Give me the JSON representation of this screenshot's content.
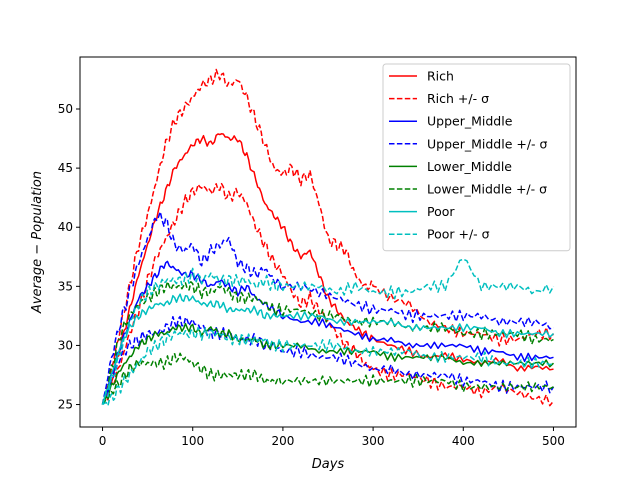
{
  "chart_data": {
    "type": "line",
    "title": "",
    "xlabel": "Days",
    "ylabel": "Average − Population",
    "xlim": [
      -25,
      525
    ],
    "ylim": [
      23.1,
      54.4
    ],
    "xticks": [
      0,
      100,
      200,
      300,
      400,
      500
    ],
    "yticks": [
      25,
      30,
      35,
      40,
      45,
      50
    ],
    "grid": false,
    "legend_position": "top-right",
    "series": [
      {
        "name": "Rich",
        "group": "rich",
        "kind": "mean",
        "color": "#ff0000",
        "dash": "solid",
        "x": [
          0,
          10,
          20,
          30,
          40,
          50,
          60,
          70,
          80,
          90,
          100,
          110,
          120,
          130,
          140,
          150,
          160,
          170,
          180,
          190,
          200,
          210,
          220,
          230,
          240,
          250,
          260,
          270,
          280,
          290,
          300,
          320,
          340,
          360,
          380,
          400,
          420,
          440,
          460,
          480,
          500
        ],
        "y": [
          25,
          27,
          30,
          33,
          36,
          38.5,
          41,
          43,
          45,
          46,
          47,
          47.5,
          47,
          48,
          47.5,
          47.5,
          46,
          44,
          42,
          41,
          40,
          38.5,
          37.5,
          38,
          36,
          34,
          33,
          32,
          31.5,
          31,
          30.5,
          30,
          29.5,
          29,
          29.2,
          28.8,
          28.5,
          28.8,
          28,
          28.2,
          28
        ]
      },
      {
        "name": "Rich +/- σ",
        "group": "rich",
        "kind": "upper",
        "color": "#ff0000",
        "dash": "dashed",
        "x": [
          0,
          10,
          20,
          30,
          40,
          50,
          60,
          70,
          80,
          90,
          100,
          110,
          120,
          130,
          140,
          150,
          160,
          170,
          180,
          190,
          200,
          210,
          220,
          230,
          240,
          250,
          260,
          270,
          280,
          290,
          300,
          320,
          340,
          360,
          380,
          400,
          420,
          440,
          460,
          480,
          500
        ],
        "y": [
          25,
          28,
          31.5,
          35,
          38.5,
          41,
          44,
          47,
          49,
          50,
          51,
          52,
          52.5,
          53,
          52,
          52.5,
          51,
          49,
          47,
          45,
          44.5,
          45,
          44,
          44.5,
          42,
          39,
          38.5,
          38,
          36,
          35,
          35,
          34,
          33.5,
          32,
          31.5,
          31,
          31,
          30.5,
          30.5,
          31,
          31
        ]
      },
      {
        "name": "",
        "group": "rich",
        "kind": "lower",
        "color": "#ff0000",
        "dash": "dashed",
        "x": [
          0,
          10,
          20,
          30,
          40,
          50,
          60,
          70,
          80,
          90,
          100,
          110,
          120,
          130,
          140,
          150,
          160,
          170,
          180,
          190,
          200,
          210,
          220,
          230,
          240,
          250,
          260,
          270,
          280,
          290,
          300,
          320,
          340,
          360,
          380,
          400,
          420,
          440,
          460,
          480,
          500
        ],
        "y": [
          25,
          26.5,
          28.5,
          31,
          33,
          35.5,
          37.5,
          39,
          40.5,
          42,
          43,
          43.5,
          43,
          43.5,
          42.5,
          43,
          42,
          40,
          38.5,
          37,
          36,
          34.5,
          33.5,
          34,
          33,
          32,
          31,
          30,
          29.5,
          28.5,
          28,
          27.5,
          27.5,
          27,
          26.5,
          26.5,
          26,
          26.5,
          26,
          25.5,
          25.3
        ]
      },
      {
        "name": "Upper_Middle",
        "group": "upper_middle",
        "kind": "mean",
        "color": "#0000ff",
        "dash": "solid",
        "x": [
          0,
          10,
          20,
          30,
          40,
          50,
          60,
          70,
          80,
          90,
          100,
          110,
          120,
          130,
          140,
          150,
          160,
          170,
          180,
          190,
          200,
          220,
          240,
          260,
          280,
          300,
          320,
          340,
          360,
          380,
          400,
          420,
          440,
          460,
          480,
          500
        ],
        "y": [
          25,
          27.5,
          30,
          32,
          34,
          35,
          36,
          37,
          36.5,
          36,
          36,
          35.5,
          35,
          35.5,
          35,
          34.5,
          35,
          34,
          33.5,
          33,
          32.5,
          32,
          32,
          31.5,
          31,
          30.5,
          30.5,
          30,
          30,
          30,
          30,
          29.5,
          29.5,
          29,
          29,
          29
        ]
      },
      {
        "name": "Upper_Middle +/- σ",
        "group": "upper_middle",
        "kind": "upper",
        "color": "#0000ff",
        "dash": "dashed",
        "x": [
          0,
          10,
          20,
          30,
          40,
          50,
          60,
          70,
          80,
          90,
          100,
          110,
          120,
          130,
          140,
          150,
          160,
          170,
          180,
          190,
          200,
          220,
          240,
          260,
          280,
          300,
          320,
          340,
          360,
          380,
          400,
          420,
          440,
          460,
          480,
          500
        ],
        "y": [
          25,
          29,
          32,
          34.5,
          37,
          39,
          41,
          40.5,
          38.5,
          38,
          38.5,
          37,
          38,
          38.5,
          39,
          37,
          36.5,
          36,
          36.5,
          35.5,
          35,
          35,
          34.5,
          34,
          33.5,
          33,
          33,
          32.5,
          32.5,
          32.5,
          32.5,
          32.5,
          32,
          32,
          32,
          31.5
        ]
      },
      {
        "name": "",
        "group": "upper_middle",
        "kind": "lower",
        "color": "#0000ff",
        "dash": "dashed",
        "x": [
          0,
          10,
          20,
          30,
          40,
          50,
          60,
          70,
          80,
          90,
          100,
          110,
          120,
          130,
          140,
          150,
          160,
          170,
          180,
          190,
          200,
          220,
          240,
          260,
          280,
          300,
          320,
          340,
          360,
          380,
          400,
          420,
          440,
          460,
          480,
          500
        ],
        "y": [
          25,
          27,
          29,
          30,
          30.5,
          31,
          31,
          31.5,
          32,
          32,
          32,
          31.5,
          31,
          31,
          31,
          30.5,
          30.5,
          30.5,
          30,
          30,
          29.5,
          29.5,
          29,
          29,
          28.5,
          28,
          28,
          27.5,
          27.5,
          27.5,
          27,
          27,
          26.5,
          26.5,
          26.5,
          26.5
        ]
      },
      {
        "name": "Lower_Middle",
        "group": "lower_middle",
        "kind": "mean",
        "color": "#008000",
        "dash": "solid",
        "x": [
          0,
          10,
          20,
          30,
          40,
          50,
          60,
          70,
          80,
          90,
          100,
          110,
          120,
          130,
          140,
          150,
          160,
          170,
          180,
          190,
          200,
          220,
          240,
          260,
          280,
          300,
          320,
          340,
          360,
          380,
          400,
          420,
          440,
          460,
          480,
          500
        ],
        "y": [
          25,
          26.5,
          28,
          29,
          30,
          30.5,
          31,
          31,
          31.5,
          31.5,
          31.5,
          31,
          31.5,
          31,
          31,
          30.5,
          30.5,
          30.5,
          30,
          30,
          30,
          30,
          29.5,
          29.5,
          29.5,
          29.5,
          29,
          29,
          29,
          29,
          28.5,
          28.5,
          28.5,
          28.5,
          28.5,
          28.5
        ]
      },
      {
        "name": "Lower_Middle +/- σ",
        "group": "lower_middle",
        "kind": "upper",
        "color": "#008000",
        "dash": "dashed",
        "x": [
          0,
          10,
          20,
          30,
          40,
          50,
          60,
          70,
          80,
          90,
          100,
          110,
          120,
          130,
          140,
          150,
          160,
          170,
          180,
          190,
          200,
          220,
          240,
          260,
          280,
          300,
          320,
          340,
          360,
          380,
          400,
          420,
          440,
          460,
          480,
          500
        ],
        "y": [
          25,
          28,
          31,
          32.5,
          33.5,
          34,
          34.5,
          35,
          35,
          35,
          35,
          34.5,
          34.5,
          35,
          34.5,
          34,
          34,
          34,
          33.5,
          33,
          33,
          33,
          32.5,
          32.5,
          32,
          32,
          32,
          31.5,
          31.5,
          31.5,
          31,
          31,
          31,
          31,
          30.5,
          30.5
        ]
      },
      {
        "name": "",
        "group": "lower_middle",
        "kind": "lower",
        "color": "#008000",
        "dash": "dashed",
        "x": [
          0,
          10,
          20,
          30,
          40,
          50,
          60,
          70,
          80,
          90,
          100,
          110,
          120,
          130,
          140,
          150,
          160,
          170,
          180,
          190,
          200,
          220,
          240,
          260,
          280,
          300,
          320,
          340,
          360,
          380,
          400,
          420,
          440,
          460,
          480,
          500
        ],
        "y": [
          25,
          26,
          27,
          28,
          28.5,
          28.5,
          28.5,
          28.5,
          29,
          29,
          28.5,
          28,
          27.5,
          27.5,
          27.5,
          27.5,
          27.5,
          27.5,
          27,
          27,
          27,
          27,
          27,
          27,
          27,
          27,
          27,
          27,
          27,
          27,
          26.5,
          26.5,
          26.5,
          26.5,
          26.5,
          26.5
        ]
      },
      {
        "name": "Poor",
        "group": "poor",
        "kind": "mean",
        "color": "#00bfbf",
        "dash": "solid",
        "x": [
          0,
          10,
          20,
          30,
          40,
          50,
          60,
          70,
          80,
          90,
          100,
          110,
          120,
          130,
          140,
          150,
          160,
          170,
          180,
          190,
          200,
          220,
          240,
          260,
          280,
          300,
          320,
          340,
          360,
          380,
          400,
          420,
          440,
          460,
          480,
          500
        ],
        "y": [
          25,
          27.5,
          30,
          31.5,
          32.5,
          33,
          33.5,
          33.5,
          34,
          34,
          34,
          33.5,
          33.5,
          33.5,
          33,
          33,
          33,
          33,
          32.5,
          32.5,
          32.5,
          32.5,
          32.5,
          32,
          32,
          32,
          32,
          31.5,
          31.5,
          31.5,
          31.5,
          31.5,
          31,
          31,
          31,
          31
        ]
      },
      {
        "name": "Poor +/- σ",
        "group": "poor",
        "kind": "upper",
        "color": "#00bfbf",
        "dash": "dashed",
        "x": [
          0,
          10,
          20,
          30,
          40,
          50,
          60,
          70,
          80,
          90,
          100,
          110,
          120,
          130,
          140,
          150,
          160,
          170,
          180,
          190,
          200,
          220,
          240,
          260,
          280,
          300,
          320,
          340,
          360,
          380,
          400,
          420,
          440,
          460,
          480,
          500
        ],
        "y": [
          25,
          27,
          29.5,
          32,
          33.5,
          34.5,
          35,
          35.5,
          35.5,
          35.5,
          36,
          35.5,
          36,
          35.5,
          35.5,
          35.5,
          35.5,
          35,
          35.5,
          35,
          35,
          35,
          35,
          34.5,
          35,
          34.5,
          34.5,
          34.5,
          35,
          35,
          37.5,
          35,
          35,
          35,
          34.5,
          35
        ]
      },
      {
        "name": "",
        "group": "poor",
        "kind": "lower",
        "color": "#00bfbf",
        "dash": "dashed",
        "x": [
          0,
          10,
          20,
          30,
          40,
          50,
          60,
          70,
          80,
          90,
          100,
          110,
          120,
          130,
          140,
          150,
          160,
          170,
          180,
          190,
          200,
          220,
          240,
          260,
          280,
          300,
          320,
          340,
          360,
          380,
          400,
          420,
          440,
          460,
          480,
          500
        ],
        "y": [
          25,
          25.5,
          26.5,
          27.5,
          28.5,
          29.5,
          30,
          30.5,
          31,
          31,
          31,
          31,
          31,
          31,
          30.5,
          30.5,
          30.5,
          30.5,
          30.5,
          30,
          30,
          30,
          30,
          30,
          29.5,
          29.5,
          29.5,
          29.5,
          29,
          29,
          29,
          29,
          28.5,
          28.5,
          28.5,
          28.5
        ]
      }
    ]
  },
  "legend": [
    {
      "label": "Rich",
      "color": "#ff0000",
      "dash": "solid"
    },
    {
      "label": "Rich +/- σ",
      "color": "#ff0000",
      "dash": "dashed"
    },
    {
      "label": "Upper_Middle",
      "color": "#0000ff",
      "dash": "solid"
    },
    {
      "label": "Upper_Middle +/- σ",
      "color": "#0000ff",
      "dash": "dashed"
    },
    {
      "label": "Lower_Middle",
      "color": "#008000",
      "dash": "solid"
    },
    {
      "label": "Lower_Middle +/- σ",
      "color": "#008000",
      "dash": "dashed"
    },
    {
      "label": "Poor",
      "color": "#00bfbf",
      "dash": "solid"
    },
    {
      "label": "Poor +/- σ",
      "color": "#00bfbf",
      "dash": "dashed"
    }
  ]
}
